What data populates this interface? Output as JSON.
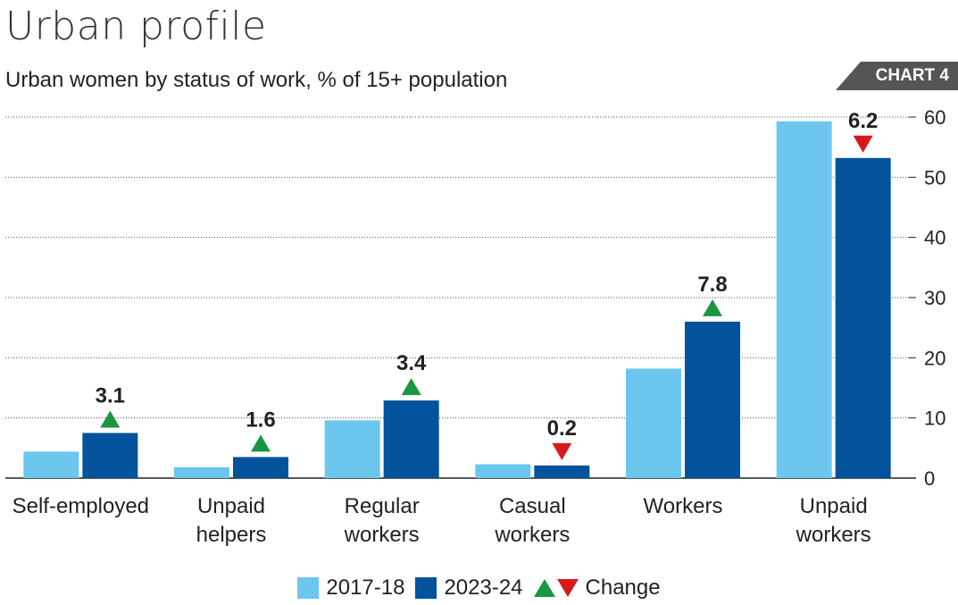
{
  "header": {
    "title": "Urban profile",
    "subtitle": "Urban women by status of work, % of 15+ population",
    "tag": "CHART 4"
  },
  "colors": {
    "series_2017": "#6cc7ee",
    "series_2023": "#02529c",
    "up": "#1a9641",
    "down": "#d7191c",
    "tag_bg": "#555555",
    "grid": "#555555"
  },
  "legend": {
    "series_2017": "2017-18",
    "series_2023": "2023-24",
    "change": "Change"
  },
  "chart_data": {
    "type": "bar",
    "title": "Urban profile",
    "subtitle": "Urban women by status of work, % of 15+ population",
    "categories": [
      [
        "Self-employed"
      ],
      [
        "Unpaid",
        "helpers"
      ],
      [
        "Regular",
        "workers"
      ],
      [
        "Casual",
        "workers"
      ],
      [
        "Workers"
      ],
      [
        "Unpaid",
        "workers"
      ]
    ],
    "series": [
      {
        "name": "2017-18",
        "values": [
          4.4,
          1.8,
          9.6,
          2.3,
          18.2,
          59.3
        ]
      },
      {
        "name": "2023-24",
        "values": [
          7.5,
          3.5,
          12.9,
          2.1,
          26.0,
          53.2
        ]
      }
    ],
    "change": [
      {
        "label": "3.1",
        "direction": "up"
      },
      {
        "label": "1.6",
        "direction": "up"
      },
      {
        "label": "3.4",
        "direction": "up"
      },
      {
        "label": "0.2",
        "direction": "down"
      },
      {
        "label": "7.8",
        "direction": "up"
      },
      {
        "label": "6.2",
        "direction": "down"
      }
    ],
    "ylim": [
      0,
      60
    ],
    "yticks": [
      0,
      10,
      20,
      30,
      40,
      50,
      60
    ],
    "y_axis_side": "right",
    "grid": true,
    "legend_position": "bottom"
  }
}
